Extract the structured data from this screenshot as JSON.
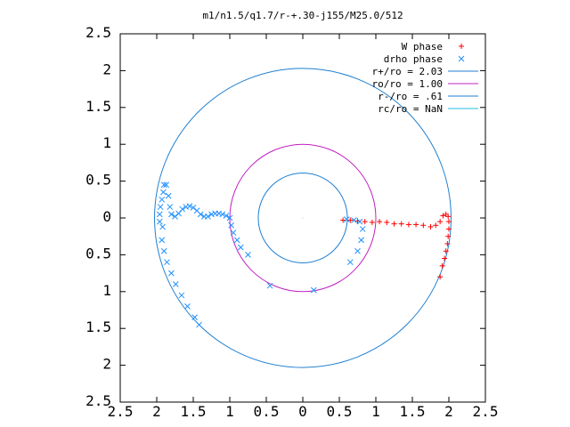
{
  "chart_data": {
    "type": "scatter",
    "title": "m1/n1.5/q1.7/r-+.30-j155/M25.0/512",
    "xlim": [
      -2.5,
      2.5
    ],
    "ylim": [
      -2.5,
      2.5
    ],
    "x_ticks": [
      -2.5,
      -2,
      -1.5,
      -1,
      -0.5,
      0,
      0.5,
      1,
      1.5,
      2,
      2.5
    ],
    "x_tick_labels": [
      "2.5",
      "2",
      "1.5",
      "1",
      "0.5",
      "0",
      "0.5",
      "1",
      "1.5",
      "2",
      "2.5"
    ],
    "y_ticks": [
      2.5,
      2,
      1.5,
      1,
      0.5,
      0,
      -0.5,
      -1,
      -1.5,
      -2,
      -2.5
    ],
    "y_tick_labels": [
      "2.5",
      "2",
      "1.5",
      "1",
      "0.5",
      "0",
      "0.5",
      "1",
      "1.5",
      "2",
      "2.5"
    ],
    "grid": false,
    "legend_position": "top-right",
    "series": [
      {
        "name": "W phase",
        "marker": "+",
        "color": "#ff0000",
        "points": [
          [
            0.55,
            -0.03
          ],
          [
            0.65,
            -0.03
          ],
          [
            0.75,
            -0.04
          ],
          [
            0.85,
            -0.05
          ],
          [
            0.95,
            -0.06
          ],
          [
            1.05,
            -0.05
          ],
          [
            1.15,
            -0.06
          ],
          [
            1.25,
            -0.08
          ],
          [
            1.35,
            -0.08
          ],
          [
            1.45,
            -0.09
          ],
          [
            1.55,
            -0.09
          ],
          [
            1.65,
            -0.1
          ],
          [
            1.75,
            -0.12
          ],
          [
            1.82,
            -0.1
          ],
          [
            1.88,
            -0.05
          ],
          [
            1.92,
            0.03
          ],
          [
            1.96,
            0.05
          ],
          [
            1.99,
            0.02
          ],
          [
            2.0,
            -0.05
          ],
          [
            2.0,
            -0.15
          ],
          [
            1.99,
            -0.25
          ],
          [
            1.98,
            -0.35
          ],
          [
            1.96,
            -0.45
          ],
          [
            1.94,
            -0.55
          ],
          [
            1.91,
            -0.65
          ],
          [
            1.88,
            -0.8
          ]
        ]
      },
      {
        "name": "drho phase",
        "marker": "x",
        "color": "#1e90ff",
        "points": [
          [
            -1.92,
            -0.12
          ],
          [
            -1.96,
            -0.05
          ],
          [
            -1.96,
            0.05
          ],
          [
            -1.95,
            0.15
          ],
          [
            -1.93,
            0.25
          ],
          [
            -1.91,
            0.35
          ],
          [
            -1.9,
            0.45
          ],
          [
            -1.87,
            0.45
          ],
          [
            -1.84,
            0.3
          ],
          [
            -1.82,
            0.15
          ],
          [
            -1.8,
            0.05
          ],
          [
            -1.75,
            0.02
          ],
          [
            -1.7,
            0.06
          ],
          [
            -1.65,
            0.12
          ],
          [
            -1.6,
            0.15
          ],
          [
            -1.55,
            0.16
          ],
          [
            -1.5,
            0.14
          ],
          [
            -1.45,
            0.1
          ],
          [
            -1.4,
            0.05
          ],
          [
            -1.35,
            0.02
          ],
          [
            -1.3,
            0.02
          ],
          [
            -1.25,
            0.05
          ],
          [
            -1.2,
            0.06
          ],
          [
            -1.15,
            0.06
          ],
          [
            -1.1,
            0.05
          ],
          [
            -1.05,
            0.03
          ],
          [
            -1.0,
            0.0
          ],
          [
            -0.98,
            -0.1
          ],
          [
            -0.95,
            -0.2
          ],
          [
            -0.9,
            -0.3
          ],
          [
            -0.85,
            -0.4
          ],
          [
            -0.75,
            -0.5
          ],
          [
            -0.45,
            -0.92
          ],
          [
            0.15,
            -0.98
          ],
          [
            0.65,
            -0.6
          ],
          [
            0.75,
            -0.45
          ],
          [
            0.8,
            -0.3
          ],
          [
            0.82,
            -0.15
          ],
          [
            0.78,
            -0.05
          ],
          [
            0.7,
            -0.03
          ],
          [
            0.6,
            -0.02
          ],
          [
            -1.93,
            -0.3
          ],
          [
            -1.9,
            -0.45
          ],
          [
            -1.86,
            -0.6
          ],
          [
            -1.8,
            -0.75
          ],
          [
            -1.74,
            -0.9
          ],
          [
            -1.66,
            -1.05
          ],
          [
            -1.58,
            -1.2
          ],
          [
            -1.48,
            -1.35
          ],
          [
            -1.42,
            -1.45
          ]
        ]
      }
    ],
    "circles": [
      {
        "label": "r+/ro = 2.03",
        "r": 2.03,
        "color": "#1e7fd0"
      },
      {
        "label": "ro/ro = 1.00",
        "r": 1.0,
        "color": "#c020c0"
      },
      {
        "label": "r-/ro = .61",
        "r": 0.61,
        "color": "#1e7fd0"
      },
      {
        "label": "rc/ro = NaN",
        "r": null,
        "color": "#20c0e0"
      }
    ]
  }
}
